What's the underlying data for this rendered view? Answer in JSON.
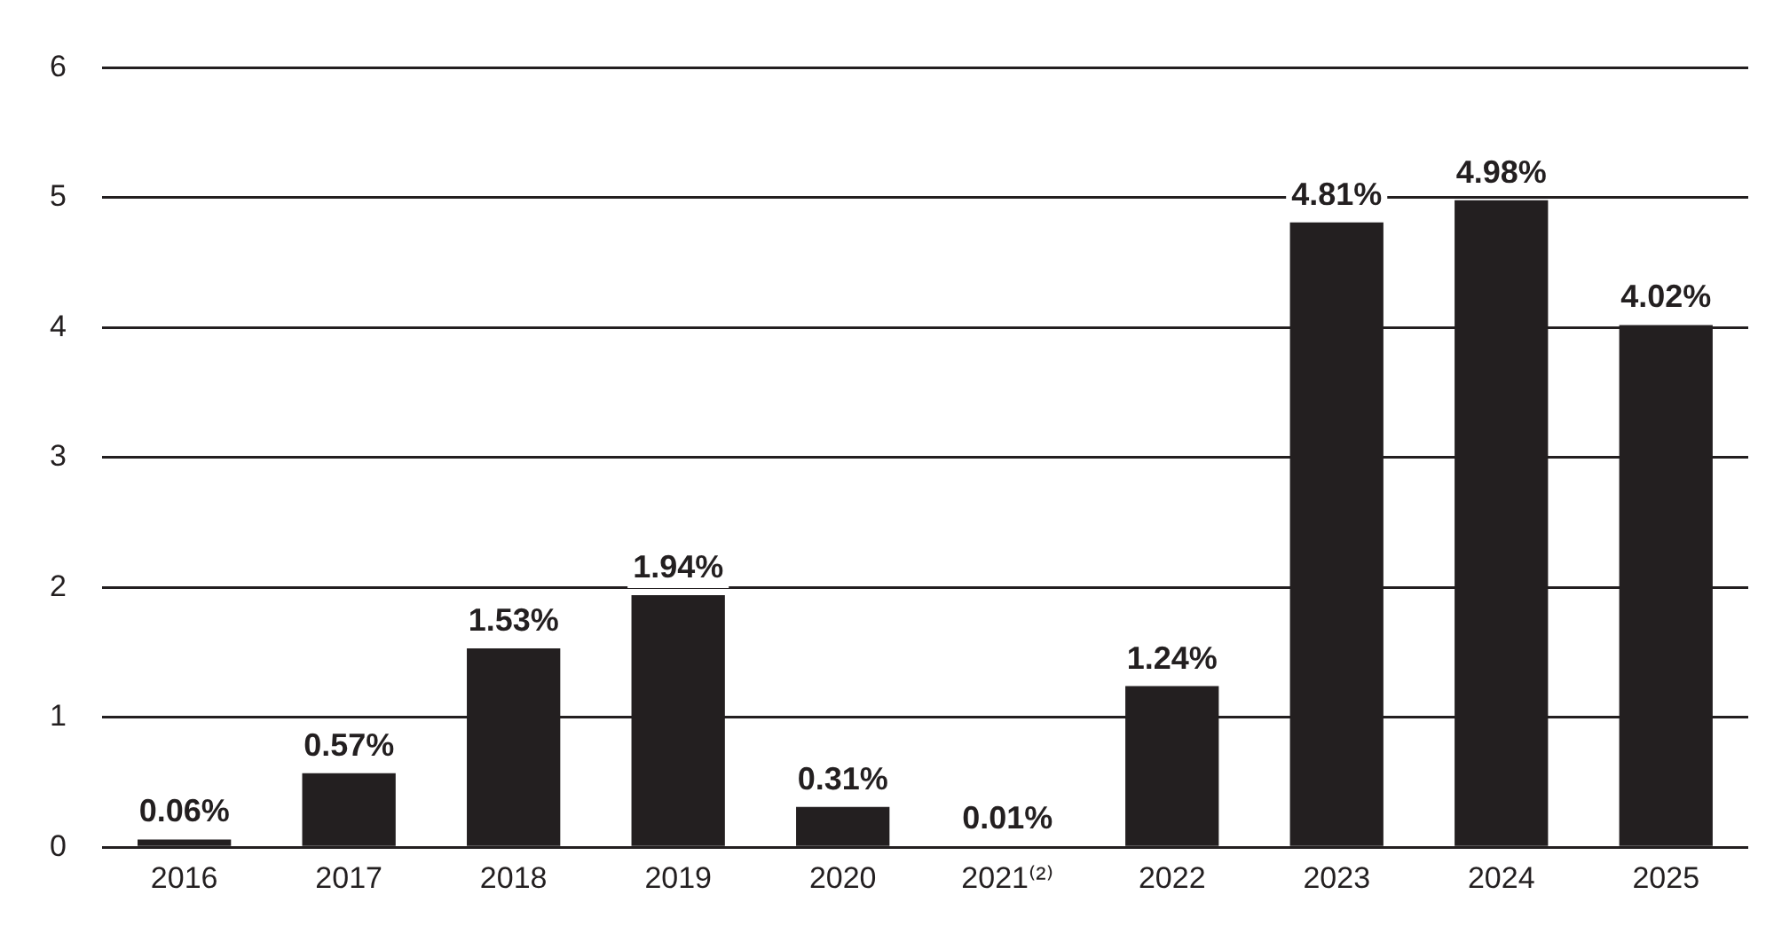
{
  "chart_data": {
    "type": "bar",
    "categories": [
      "2016",
      "2017",
      "2018",
      "2019",
      "2020",
      "2021⁽²⁾",
      "2022",
      "2023",
      "2024",
      "2025"
    ],
    "values": [
      0.06,
      0.57,
      1.53,
      1.94,
      0.31,
      0.01,
      1.24,
      4.81,
      4.98,
      4.02
    ],
    "value_labels": [
      "0.06%",
      "0.57%",
      "1.53%",
      "1.94%",
      "0.31%",
      "0.01%",
      "1.24%",
      "4.81%",
      "4.98%",
      "4.02%"
    ],
    "color": "#231f20",
    "ylim": [
      0,
      6
    ],
    "yticks": [
      0,
      1,
      2,
      3,
      4,
      5,
      6
    ],
    "grid": "y",
    "legend": false
  }
}
